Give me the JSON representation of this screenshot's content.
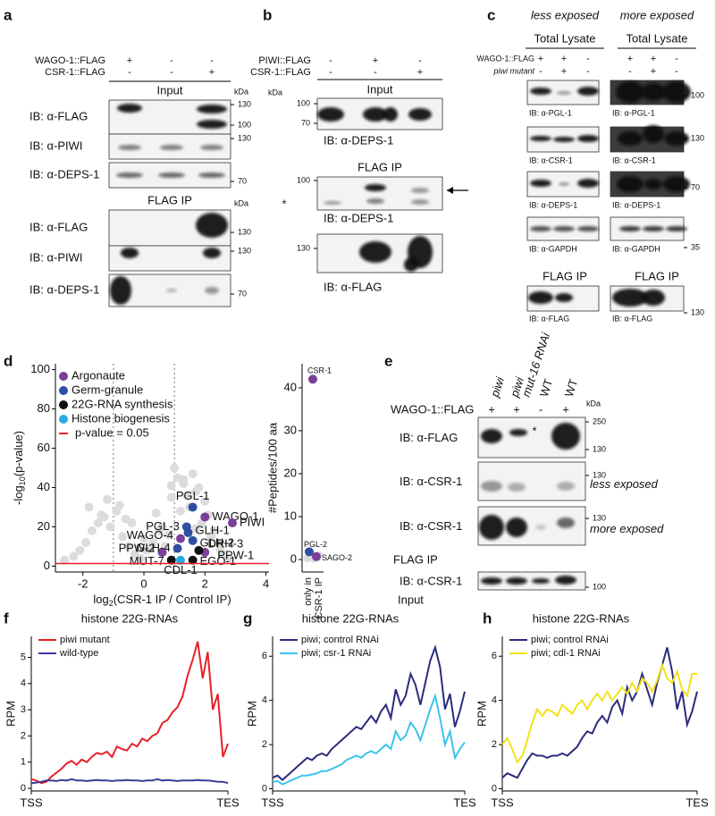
{
  "figure": {
    "a": {
      "label": "a",
      "conditions": [
        {
          "name": "WAGO-1::FLAG",
          "lanes": [
            "+",
            "-",
            "-"
          ]
        },
        {
          "name": "CSR-1::FLAG",
          "lanes": [
            "-",
            "-",
            "+"
          ]
        }
      ],
      "sections": [
        "Input",
        "FLAG IP"
      ],
      "kda": "kDa",
      "rows": [
        {
          "antibody": "IB: α-FLAG",
          "markers": [
            130,
            100
          ]
        },
        {
          "antibody": "IB: α-PIWI",
          "markers": [
            130
          ]
        },
        {
          "antibody": "IB: α-DEPS-1",
          "markers": [
            70
          ]
        },
        {
          "antibody": "IB: α-FLAG",
          "markers": [
            130
          ]
        },
        {
          "antibody": "IB: α-PIWI",
          "markers": [
            130
          ]
        },
        {
          "antibody": "IB: α-DEPS-1",
          "markers": [
            70
          ]
        }
      ]
    },
    "b": {
      "label": "b",
      "conditions": [
        {
          "name": "PIWI::FLAG",
          "lanes": [
            "-",
            "+",
            "-"
          ]
        },
        {
          "name": "CSR-1::FLAG",
          "lanes": [
            "-",
            "-",
            "+"
          ]
        }
      ],
      "sections": [
        "Input",
        "FLAG IP"
      ],
      "kda": "kDa",
      "rows": [
        {
          "antibody": "IB: α-DEPS-1",
          "markers": [
            100,
            70
          ]
        },
        {
          "antibody": "IB: α-DEPS-1",
          "markers": [
            100
          ],
          "asterisk": "*"
        },
        {
          "antibody": "IB: α-FLAG",
          "markers": [
            130
          ]
        }
      ]
    },
    "c": {
      "label": "c",
      "exposures": [
        "less exposed",
        "more exposed"
      ],
      "lysate": "Total Lysate",
      "conditions": [
        {
          "name": "WAGO-1::FLAG",
          "lanes": [
            "+",
            "+",
            "-"
          ]
        },
        {
          "name": "piwi mutant",
          "lanes": [
            "-",
            "+",
            "-"
          ]
        }
      ],
      "rows": [
        {
          "antibody": "IB: α-PGL-1",
          "markers": [
            100
          ]
        },
        {
          "antibody": "IB: α-CSR-1",
          "markers": [
            130
          ]
        },
        {
          "antibody": "IB: α-DEPS-1",
          "markers": [
            70
          ]
        },
        {
          "antibody": "IB: α-GAPDH",
          "markers": [
            35
          ]
        }
      ],
      "ip": {
        "title": "FLAG IP",
        "antibody": "IB: α-FLAG",
        "markers": [
          130
        ]
      }
    },
    "e": {
      "label": "e",
      "lanes": [
        [
          "piwi"
        ],
        [
          "piwi",
          "mut-16 RNAi"
        ],
        [
          "WT"
        ],
        [
          "WT"
        ]
      ],
      "condition": {
        "name": "WAGO-1::FLAG",
        "lanes": [
          "+",
          "+",
          "-",
          "+"
        ]
      },
      "kda": "kDa",
      "sections": [
        "FLAG IP",
        "Input"
      ],
      "rows": [
        {
          "antibody": "IB: α-FLAG",
          "markers": [
            250,
            130
          ],
          "asterisk": "*"
        },
        {
          "antibody": "IB: α-CSR-1",
          "markers": [
            130
          ],
          "note": "less exposed"
        },
        {
          "antibody": "IB: α-CSR-1",
          "markers": [
            130
          ],
          "note": "more exposed"
        },
        {
          "antibody": "IB: α-CSR-1",
          "markers": [
            100
          ]
        }
      ]
    }
  },
  "chart_data": [
    {
      "panel": "d",
      "type": "scatter",
      "y_label": [
        "-log",
        "10",
        "(p-value)"
      ],
      "x_label": [
        "log",
        "2",
        "(CSR-1 IP / Control IP)"
      ],
      "xlim": [
        -2.9,
        4.1
      ],
      "ylim": [
        -3,
        103
      ],
      "xticks": [
        -2,
        0,
        2,
        4
      ],
      "yticks": [
        0,
        20,
        40,
        60,
        80,
        100
      ],
      "vlines": [
        -1,
        1
      ],
      "threshold": {
        "name": "p-value = 0.05",
        "color": "#e8202a",
        "y": 1.3
      },
      "series": [
        {
          "color": "#dcdcdc",
          "x": [
            -2.6,
            -2.3,
            -2.1,
            -1.9,
            -1.7,
            -1.5,
            -1.3,
            -1.1,
            -0.9,
            -0.7,
            -0.5,
            -0.3,
            -0.1,
            0.1,
            0.3,
            0.5,
            0.7,
            0.9,
            1.1,
            1.3,
            1.5,
            1.7,
            1.9,
            2.1,
            2.3,
            -1.8,
            -1.2,
            -0.6,
            0.0,
            0.6,
            1.2,
            1.8,
            2.4,
            -1.4,
            -0.8,
            0.2,
            0.8,
            1.4,
            2.0,
            2.6,
            1.0,
            1.3,
            1.6,
            2.2,
            2.8,
            -0.4,
            0.4,
            1.7,
            0.9,
            2.5
          ],
          "values": [
            3,
            5,
            8,
            12,
            18,
            22,
            25,
            20,
            28,
            15,
            10,
            6,
            4,
            8,
            12,
            18,
            10,
            35,
            45,
            42,
            30,
            38,
            22,
            26,
            18,
            30,
            34,
            24,
            14,
            20,
            28,
            40,
            12,
            26,
            31,
            9,
            16,
            36,
            33,
            6,
            50,
            44,
            47,
            15,
            4,
            22,
            27,
            19,
            41,
            9
          ]
        },
        {
          "name": "Argonaute",
          "color": "#7b3f98",
          "x": [
            2.0,
            2.9,
            1.2,
            0.6,
            2.0
          ],
          "values": [
            25,
            22,
            14,
            7,
            7
          ],
          "point_labels": [
            "WAGO-1",
            "PIWI",
            "WAGO-4",
            "PPW-2",
            "PPW-1"
          ]
        },
        {
          "name": "Germ-granule",
          "color": "#2f4fa2",
          "x": [
            1.6,
            1.4,
            1.45,
            1.6,
            1.1
          ],
          "values": [
            30,
            20,
            17,
            13,
            9
          ],
          "point_labels": [
            "PGL-1",
            "PGL-3",
            "GLH-1",
            "GLH-2",
            "GLH-4"
          ]
        },
        {
          "name": "22G-RNA synthesis",
          "color": "#111111",
          "x": [
            1.8,
            0.9,
            1.6
          ],
          "values": [
            8,
            3,
            3
          ],
          "point_labels": [
            "DRH-3",
            "MUT-7",
            "EGO-1"
          ]
        },
        {
          "name": "Histone biogenesis",
          "color": "#29abe2",
          "x": [
            1.2
          ],
          "values": [
            3
          ],
          "point_labels": [
            "CDL-1"
          ]
        }
      ]
    },
    {
      "type": "scatter",
      "y_label": "#Peptides/100 aa",
      "x_label": [
        "only in",
        "CSR-1 IP"
      ],
      "ylim": [
        -2.9,
        45.6
      ],
      "yticks": [
        0,
        10,
        20,
        30,
        40
      ],
      "series": [
        {
          "color": "#dcdcdc",
          "values": [
            0.3,
            0.5,
            0.8,
            1.0,
            0.2
          ]
        },
        {
          "color": "#7b3f98",
          "values": [
            42,
            0.7
          ],
          "point_labels": [
            "CSR-1",
            "SAGO-2"
          ]
        },
        {
          "color": "#2f4fa2",
          "values": [
            1.8
          ],
          "point_labels": [
            "PGL-2"
          ]
        }
      ]
    },
    {
      "panel": "f",
      "type": "line",
      "title": "histone 22G-RNAs",
      "y_label": "RPM",
      "x": [
        0,
        1,
        2,
        3,
        4,
        5,
        6,
        7,
        8,
        9,
        10,
        11,
        12,
        13,
        14,
        15,
        16,
        17,
        18,
        19,
        20,
        21,
        22,
        23,
        24,
        25,
        26,
        27,
        28,
        29,
        30,
        31,
        32,
        33,
        34,
        35,
        36,
        37,
        38,
        39
      ],
      "xlim": [
        0,
        39
      ],
      "xticks": [
        {
          "value": 0,
          "label": "TSS"
        },
        {
          "value": 39,
          "label": "TES"
        }
      ],
      "ylim": [
        -0.1,
        5.8
      ],
      "yticks": [
        0,
        1,
        2,
        3,
        4,
        5
      ],
      "series": [
        {
          "name": "piwi mutant",
          "color": "#e8202a",
          "values": [
            0.35,
            0.3,
            0.2,
            0.25,
            0.45,
            0.6,
            0.75,
            0.95,
            1.05,
            0.9,
            1.1,
            1.0,
            1.2,
            1.35,
            1.3,
            1.4,
            1.2,
            1.6,
            1.5,
            1.45,
            1.7,
            1.6,
            1.9,
            1.8,
            2.0,
            2.1,
            2.5,
            2.6,
            2.9,
            3.1,
            3.5,
            4.3,
            4.9,
            5.6,
            4.2,
            5.2,
            3.0,
            3.6,
            1.2,
            1.7
          ]
        },
        {
          "name": "wild-type",
          "color": "#3b3b9b",
          "values": [
            0.2,
            0.22,
            0.25,
            0.3,
            0.3,
            0.28,
            0.32,
            0.3,
            0.35,
            0.3,
            0.3,
            0.28,
            0.3,
            0.32,
            0.3,
            0.3,
            0.28,
            0.3,
            0.3,
            0.32,
            0.3,
            0.3,
            0.28,
            0.3,
            0.3,
            0.35,
            0.3,
            0.32,
            0.3,
            0.28,
            0.3,
            0.3,
            0.3,
            0.32,
            0.3,
            0.3,
            0.28,
            0.25,
            0.25,
            0.2
          ]
        }
      ]
    },
    {
      "panel": "g",
      "type": "line",
      "title": "histone 22G-RNAs",
      "y_label": "RPM",
      "x": [
        0,
        1,
        2,
        3,
        4,
        5,
        6,
        7,
        8,
        9,
        10,
        11,
        12,
        13,
        14,
        15,
        16,
        17,
        18,
        19,
        20,
        21,
        22,
        23,
        24,
        25,
        26,
        27,
        28,
        29,
        30,
        31,
        32,
        33,
        34,
        35,
        36,
        37,
        38,
        39
      ],
      "xlim": [
        0,
        39
      ],
      "xticks": [
        {
          "value": 0,
          "label": "TSS"
        },
        {
          "value": 39,
          "label": "TES"
        }
      ],
      "ylim": [
        -0.1,
        6.9
      ],
      "yticks": [
        0,
        2,
        4,
        6
      ],
      "series": [
        {
          "name": "piwi; control RNAi",
          "color": "#2b2c7c",
          "values": [
            0.5,
            0.6,
            0.4,
            0.6,
            0.8,
            1.0,
            1.2,
            1.4,
            1.3,
            1.5,
            1.6,
            1.5,
            1.8,
            2.0,
            2.2,
            2.4,
            2.6,
            2.8,
            2.7,
            3.0,
            3.3,
            3.0,
            3.5,
            3.8,
            3.2,
            4.5,
            3.8,
            4.2,
            5.2,
            4.7,
            3.8,
            4.8,
            5.8,
            6.4,
            5.5,
            3.6,
            4.3,
            2.8,
            3.5,
            4.4
          ]
        },
        {
          "name": "piwi; csr-1 RNAi",
          "color": "#3cc3ec",
          "values": [
            0.3,
            0.35,
            0.2,
            0.3,
            0.4,
            0.5,
            0.6,
            0.6,
            0.65,
            0.7,
            0.8,
            0.8,
            0.9,
            1.0,
            1.1,
            1.3,
            1.4,
            1.5,
            1.4,
            1.6,
            1.7,
            1.6,
            1.8,
            2.0,
            1.8,
            2.6,
            2.2,
            2.4,
            3.0,
            2.7,
            2.2,
            2.9,
            3.6,
            4.2,
            3.2,
            2.0,
            2.6,
            1.4,
            1.8,
            2.1
          ]
        }
      ]
    },
    {
      "panel": "h",
      "type": "line",
      "title": "histone 22G-RNAs",
      "y_label": "RPM",
      "x": [
        0,
        1,
        2,
        3,
        4,
        5,
        6,
        7,
        8,
        9,
        10,
        11,
        12,
        13,
        14,
        15,
        16,
        17,
        18,
        19,
        20,
        21,
        22,
        23,
        24,
        25,
        26,
        27,
        28,
        29,
        30,
        31,
        32,
        33,
        34,
        35,
        36,
        37,
        38,
        39
      ],
      "xlim": [
        0,
        39
      ],
      "xticks": [
        {
          "value": 0,
          "label": "TSS"
        },
        {
          "value": 39,
          "label": "TES"
        }
      ],
      "ylim": [
        -0.1,
        6.9
      ],
      "yticks": [
        0,
        2,
        4,
        6
      ],
      "series": [
        {
          "name": "piwi; control RNAi",
          "color": "#2b2c7c",
          "values": [
            0.5,
            0.7,
            0.6,
            0.5,
            0.9,
            1.3,
            1.6,
            1.5,
            1.5,
            1.4,
            1.5,
            1.5,
            1.6,
            1.5,
            1.7,
            1.9,
            2.3,
            2.6,
            2.5,
            3.0,
            3.3,
            3.0,
            3.7,
            4.0,
            3.4,
            4.6,
            4.0,
            4.4,
            5.2,
            4.5,
            3.8,
            4.8,
            5.6,
            6.4,
            5.3,
            3.6,
            4.4,
            2.9,
            3.5,
            4.4
          ]
        },
        {
          "name": "piwi; cdl-1 RNAi",
          "color": "#f2e21b",
          "values": [
            2.0,
            2.3,
            1.8,
            1.2,
            1.5,
            2.2,
            3.0,
            3.6,
            3.3,
            3.6,
            3.5,
            3.3,
            3.8,
            3.6,
            3.4,
            3.8,
            4.0,
            3.6,
            4.0,
            4.3,
            4.0,
            4.4,
            4.0,
            4.3,
            4.6,
            4.3,
            4.8,
            4.4,
            5.0,
            4.8,
            4.4,
            4.9,
            5.6,
            5.0,
            4.8,
            5.3,
            4.5,
            4.2,
            5.2,
            5.2
          ]
        }
      ]
    }
  ]
}
